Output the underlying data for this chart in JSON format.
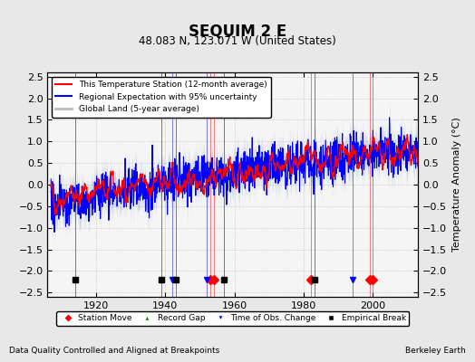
{
  "title": "SEQUIM 2 E",
  "subtitle": "48.083 N, 123.071 W (United States)",
  "ylabel": "Temperature Anomaly (°C)",
  "footer_left": "Data Quality Controlled and Aligned at Breakpoints",
  "footer_right": "Berkeley Earth",
  "ylim": [
    -2.6,
    2.6
  ],
  "yticks": [
    -2.5,
    -2,
    -1.5,
    -1,
    -0.5,
    0,
    0.5,
    1,
    1.5,
    2,
    2.5
  ],
  "xlim": [
    1906,
    2013
  ],
  "xticks": [
    1920,
    1940,
    1960,
    1980,
    2000
  ],
  "year_start": 1907,
  "num_years": 106,
  "station_moves": [
    1953,
    1954,
    1982,
    1999,
    2000
  ],
  "record_gaps": [],
  "time_obs_changes": [
    1942,
    1952,
    1994
  ],
  "empirical_breaks": [
    1914,
    1939,
    1943,
    1957,
    1983
  ],
  "bg_color": "#e8e8e8",
  "plot_bg": "#f5f5f5",
  "seed": 42
}
